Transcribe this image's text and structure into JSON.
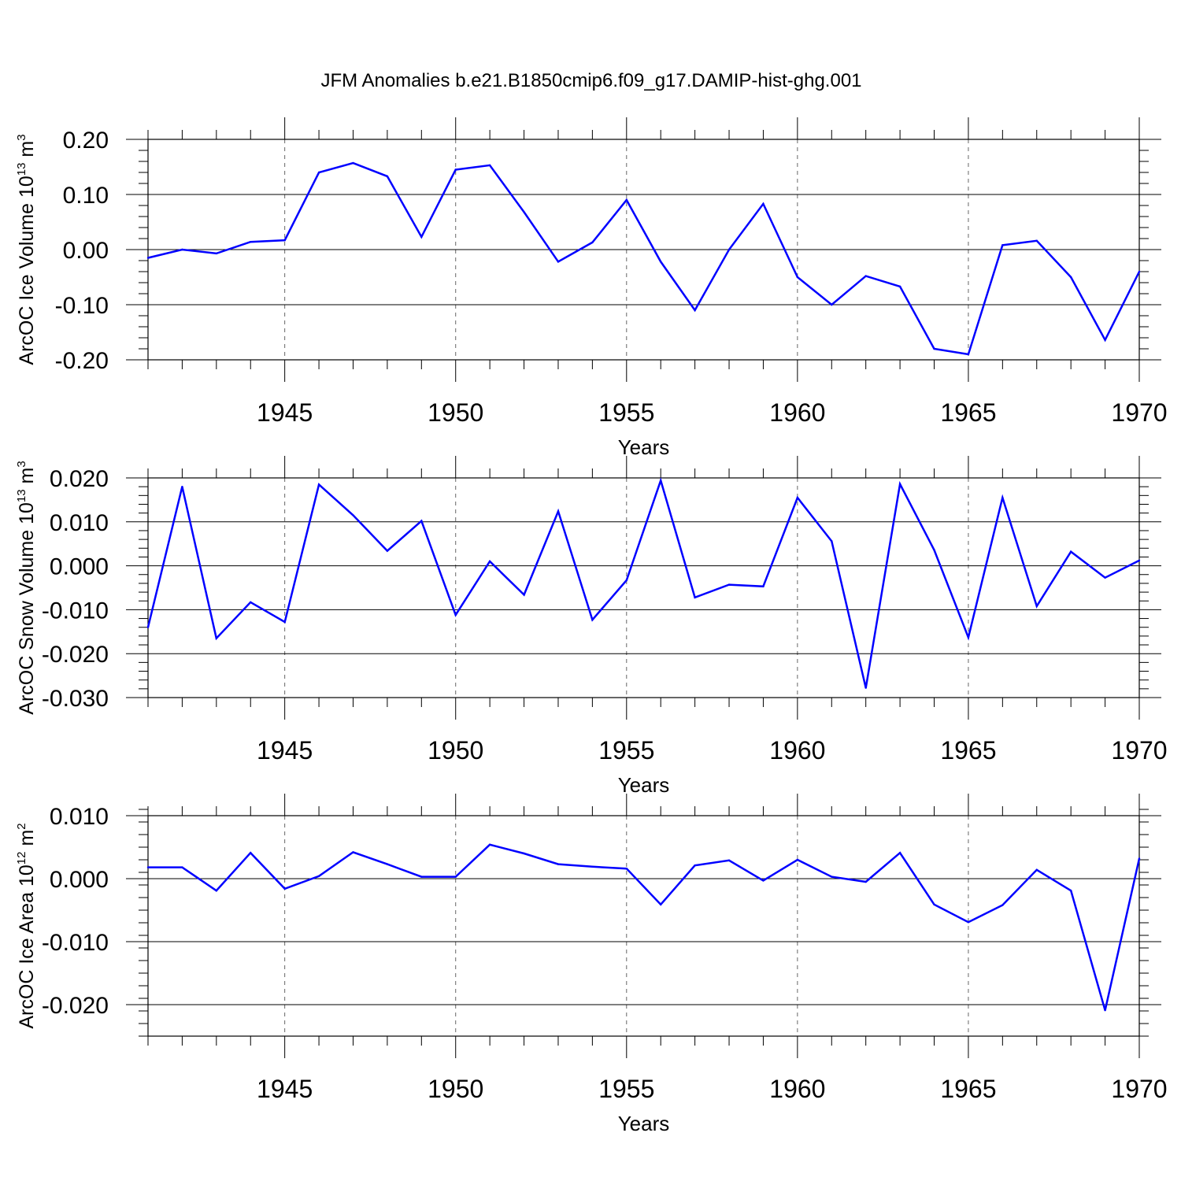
{
  "title": "JFM Anomalies b.e21.B1850cmip6.f09_g17.DAMIP-hist-ghg.001",
  "chart_data": [
    {
      "type": "line",
      "title": "JFM Anomalies b.e21.B1850cmip6.f09_g17.DAMIP-hist-ghg.001",
      "ylabel": "ArcOC Ice Volume",
      "ylabel_unit_base": "10",
      "ylabel_unit_exp": "13",
      "ylabel_unit_m": "m",
      "ylabel_unit_m_exp": "3",
      "xlabel": "Years",
      "xlim": [
        1941,
        1970
      ],
      "ylim": [
        -0.2,
        0.2
      ],
      "yticks": [
        -0.2,
        -0.1,
        0.0,
        0.1,
        0.2
      ],
      "ytick_labels": [
        "-0.20",
        "-0.10",
        "0.00",
        "0.10",
        "0.20"
      ],
      "yminor_step": 0.02,
      "xticks": [
        1945,
        1950,
        1955,
        1960,
        1965,
        1970
      ],
      "xtick_labels": [
        "1945",
        "1950",
        "1955",
        "1960",
        "1965",
        "1970"
      ],
      "grid": "vertical dashed at major x ticks",
      "line_color": "#0000ff",
      "series": [
        {
          "name": "ArcOC Ice Volume anomaly",
          "x": [
            1941,
            1942,
            1943,
            1944,
            1945,
            1946,
            1947,
            1948,
            1949,
            1950,
            1951,
            1952,
            1953,
            1954,
            1955,
            1956,
            1957,
            1958,
            1959,
            1960,
            1961,
            1962,
            1963,
            1964,
            1965,
            1966,
            1967,
            1968,
            1969,
            1970
          ],
          "values": [
            -0.015,
            0.0,
            -0.007,
            0.014,
            0.017,
            0.14,
            0.157,
            0.133,
            0.023,
            0.145,
            0.153,
            0.068,
            -0.022,
            0.013,
            0.09,
            -0.022,
            -0.11,
            0.0,
            0.083,
            -0.05,
            -0.1,
            -0.048,
            -0.067,
            -0.18,
            -0.19,
            0.008,
            0.016,
            -0.05,
            -0.164,
            -0.04
          ]
        }
      ]
    },
    {
      "type": "line",
      "ylabel": "ArcOC Snow Volume",
      "ylabel_unit_base": "10",
      "ylabel_unit_exp": "13",
      "ylabel_unit_m": "m",
      "ylabel_unit_m_exp": "3",
      "xlabel": "Years",
      "xlim": [
        1941,
        1970
      ],
      "ylim": [
        -0.03,
        0.02
      ],
      "yticks": [
        -0.03,
        -0.02,
        -0.01,
        0.0,
        0.01,
        0.02
      ],
      "ytick_labels": [
        "-0.030",
        "-0.020",
        "-0.010",
        "0.000",
        "0.010",
        "0.020"
      ],
      "yminor_step": 0.002,
      "xticks": [
        1945,
        1950,
        1955,
        1960,
        1965,
        1970
      ],
      "xtick_labels": [
        "1945",
        "1950",
        "1955",
        "1960",
        "1965",
        "1970"
      ],
      "grid": "vertical dashed at major x ticks",
      "line_color": "#0000ff",
      "series": [
        {
          "name": "ArcOC Snow Volume anomaly",
          "x": [
            1941,
            1942,
            1943,
            1944,
            1945,
            1946,
            1947,
            1948,
            1949,
            1950,
            1951,
            1952,
            1953,
            1954,
            1955,
            1956,
            1957,
            1958,
            1959,
            1960,
            1961,
            1962,
            1963,
            1964,
            1965,
            1966,
            1967,
            1968,
            1969,
            1970
          ],
          "values": [
            -0.014,
            0.018,
            -0.0165,
            -0.0083,
            -0.0128,
            0.0185,
            0.0115,
            0.0034,
            0.0102,
            -0.0112,
            0.001,
            -0.0066,
            0.0124,
            -0.0123,
            -0.0033,
            0.0194,
            -0.0072,
            -0.0043,
            -0.0047,
            0.0155,
            0.0056,
            -0.0278,
            0.0186,
            0.0036,
            -0.0163,
            0.0155,
            -0.0092,
            0.0032,
            -0.0027,
            0.0012
          ]
        }
      ]
    },
    {
      "type": "line",
      "ylabel": "ArcOC Ice Area",
      "ylabel_unit_base": "10",
      "ylabel_unit_exp": "12",
      "ylabel_unit_m": "m",
      "ylabel_unit_m_exp": "2",
      "xlabel": "Years",
      "xlim": [
        1941,
        1970
      ],
      "ylim": [
        -0.025,
        0.01
      ],
      "yticks": [
        -0.02,
        -0.01,
        0.0,
        0.01
      ],
      "ytick_labels": [
        "-0.020",
        "-0.010",
        "0.000",
        "0.010"
      ],
      "yminor_step": 0.002,
      "xticks": [
        1945,
        1950,
        1955,
        1960,
        1965,
        1970
      ],
      "xtick_labels": [
        "1945",
        "1950",
        "1955",
        "1960",
        "1965",
        "1970"
      ],
      "grid": "vertical dashed at major x ticks",
      "line_color": "#0000ff",
      "series": [
        {
          "name": "ArcOC Ice Area anomaly",
          "x": [
            1941,
            1942,
            1943,
            1944,
            1945,
            1946,
            1947,
            1948,
            1949,
            1950,
            1951,
            1952,
            1953,
            1954,
            1955,
            1956,
            1957,
            1958,
            1959,
            1960,
            1961,
            1962,
            1963,
            1964,
            1965,
            1966,
            1967,
            1968,
            1969,
            1970
          ],
          "values": [
            0.0018,
            0.0018,
            -0.0019,
            0.0041,
            -0.0016,
            0.0004,
            0.0042,
            0.0023,
            0.0003,
            0.0003,
            0.0054,
            0.004,
            0.0023,
            0.0019,
            0.0016,
            -0.0041,
            0.0021,
            0.0029,
            -0.0003,
            0.003,
            0.0003,
            -0.0005,
            0.0041,
            -0.0041,
            -0.0069,
            -0.0042,
            0.0014,
            -0.0019,
            -0.0209,
            0.0032
          ]
        }
      ]
    }
  ]
}
